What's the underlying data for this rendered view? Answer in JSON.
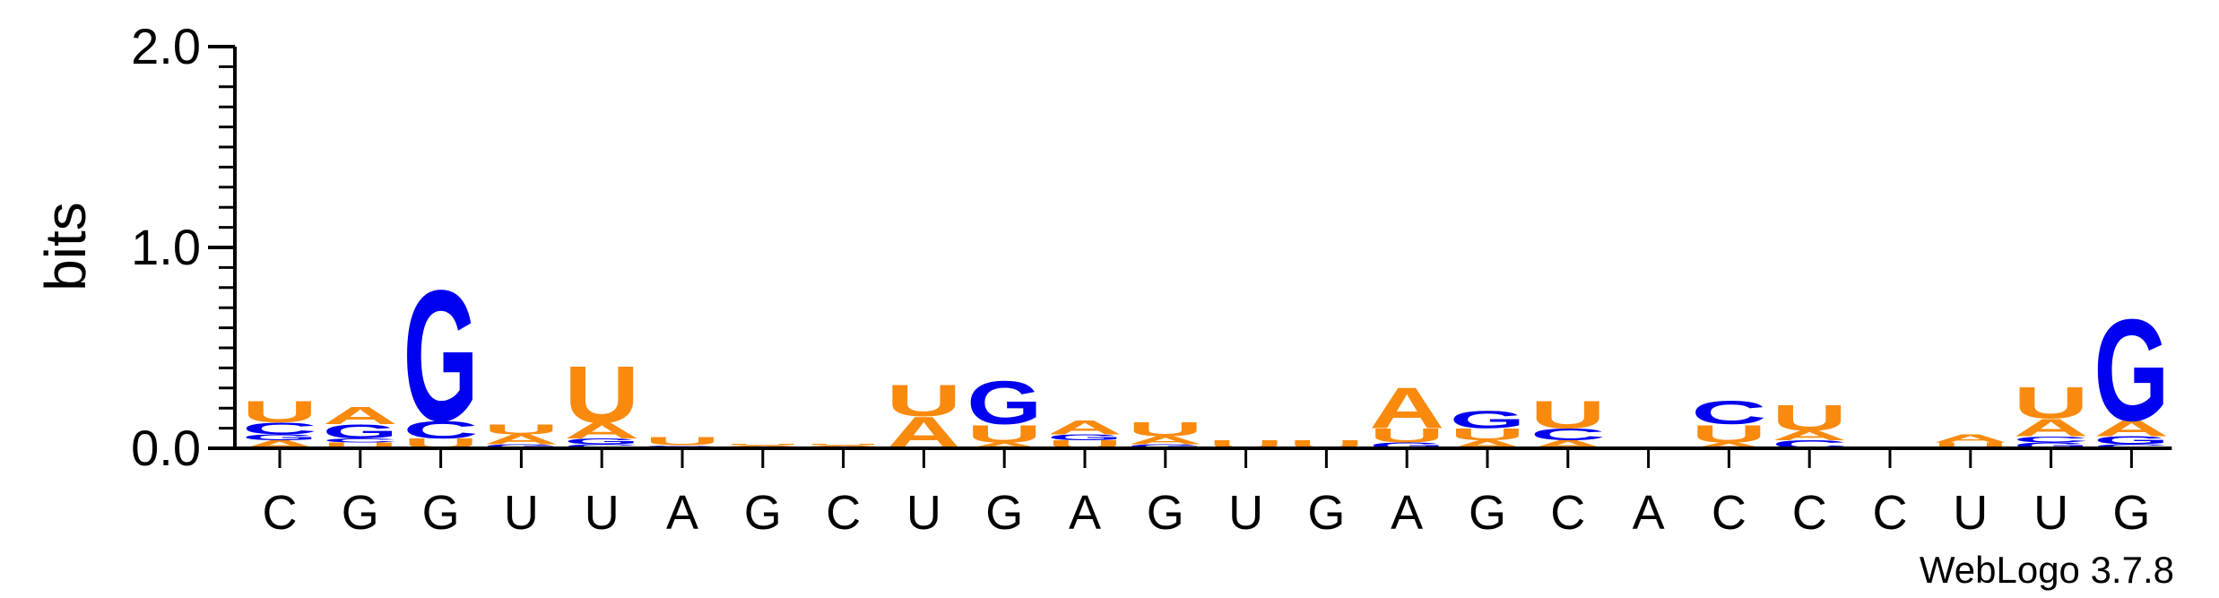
{
  "chart_data": {
    "type": "sequence-logo",
    "ylabel": "bits",
    "ylim": [
      0,
      2.0
    ],
    "y_ticks": [
      "0.0",
      "1.0",
      "2.0"
    ],
    "credit": "WebLogo 3.7.8",
    "colors": {
      "A": "#f98a0e",
      "U": "#f98a0e",
      "G": "#0000f0",
      "C": "#0000f0"
    },
    "sequence": [
      "C",
      "G",
      "G",
      "U",
      "U",
      "A",
      "G",
      "C",
      "U",
      "G",
      "A",
      "G",
      "U",
      "G",
      "A",
      "G",
      "C",
      "A",
      "C",
      "C",
      "C",
      "U",
      "U",
      "G"
    ],
    "stacks": [
      [
        [
          "A",
          0.04
        ],
        [
          "G",
          0.03
        ],
        [
          "C",
          0.06
        ],
        [
          "U",
          0.11
        ]
      ],
      [
        [
          "U",
          0.03
        ],
        [
          "C",
          0.02
        ],
        [
          "G",
          0.07
        ],
        [
          "A",
          0.09
        ]
      ],
      [
        [
          "U",
          0.05
        ],
        [
          "C",
          0.09
        ],
        [
          "G",
          0.67
        ]
      ],
      [
        [
          "G",
          0.02
        ],
        [
          "A",
          0.05
        ],
        [
          "U",
          0.05
        ]
      ],
      [
        [
          "C",
          0.02
        ],
        [
          "G",
          0.03
        ],
        [
          "A",
          0.08
        ],
        [
          "U",
          0.29
        ]
      ],
      [
        [
          "C",
          0.005
        ],
        [
          "G",
          0.01
        ],
        [
          "U",
          0.04
        ]
      ],
      [
        [
          "C",
          0.005
        ],
        [
          "G",
          0.005
        ],
        [
          "A",
          0.005
        ],
        [
          "U",
          0.005
        ]
      ],
      [
        [
          "C",
          0.005
        ],
        [
          "G",
          0.005
        ],
        [
          "A",
          0.005
        ],
        [
          "U",
          0.005
        ]
      ],
      [
        [
          "A",
          0.16
        ],
        [
          "U",
          0.16
        ]
      ],
      [
        [
          "A",
          0.03
        ],
        [
          "U",
          0.09
        ],
        [
          "G",
          0.22
        ]
      ],
      [
        [
          "U",
          0.04
        ],
        [
          "G",
          0.03
        ],
        [
          "A",
          0.07
        ]
      ],
      [
        [
          "G",
          0.02
        ],
        [
          "A",
          0.04
        ],
        [
          "U",
          0.07
        ]
      ],
      [
        [
          "U",
          0.04
        ]
      ],
      [
        [
          "U",
          0.04
        ]
      ],
      [
        [
          "G",
          0.03
        ],
        [
          "U",
          0.07
        ],
        [
          "A",
          0.21
        ]
      ],
      [
        [
          "A",
          0.04
        ],
        [
          "U",
          0.06
        ],
        [
          "G",
          0.09
        ]
      ],
      [
        [
          "A",
          0.04
        ],
        [
          "C",
          0.06
        ],
        [
          "U",
          0.14
        ]
      ],
      [],
      [
        [
          "A",
          0.03
        ],
        [
          "U",
          0.09
        ],
        [
          "C",
          0.12
        ]
      ],
      [
        [
          "C",
          0.04
        ],
        [
          "A",
          0.05
        ],
        [
          "U",
          0.13
        ]
      ],
      [],
      [
        [
          "U",
          0.03
        ],
        [
          "A",
          0.04
        ]
      ],
      [
        [
          "G",
          0.03
        ],
        [
          "C",
          0.03
        ],
        [
          "A",
          0.09
        ],
        [
          "U",
          0.16
        ]
      ],
      [
        [
          "C",
          0.02
        ],
        [
          "G",
          0.04
        ],
        [
          "A",
          0.08
        ],
        [
          "G",
          0.52
        ]
      ]
    ]
  }
}
